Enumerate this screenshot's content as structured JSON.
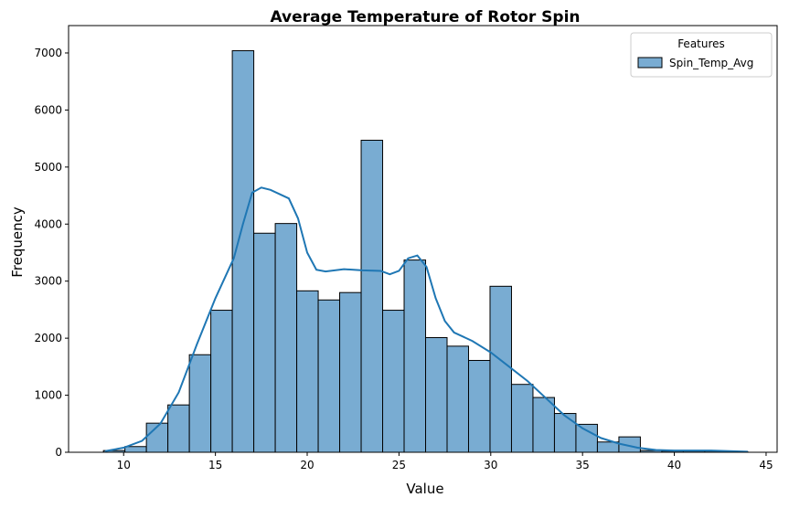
{
  "chart_data": {
    "type": "histogram",
    "title": "Average Temperature of Rotor Spin",
    "x_label": "Value",
    "y_label": "Frequency",
    "bins": [
      8.9,
      10.07,
      11.24,
      12.41,
      13.58,
      14.75,
      15.92,
      17.09,
      18.26,
      19.43,
      20.6,
      21.77,
      22.94,
      24.11,
      25.28,
      26.45,
      27.62,
      28.79,
      29.96,
      31.13,
      32.3,
      33.47,
      34.64,
      35.81,
      36.98,
      38.15,
      39.32,
      40.49,
      41.66,
      42.83,
      44.0
    ],
    "series": [
      {
        "name": "Spin_Temp_Avg",
        "color": "#79acd2",
        "edge_color": "#000000",
        "values": [
          30,
          100,
          510,
          830,
          1710,
          2490,
          7040,
          3840,
          4010,
          2830,
          2670,
          2800,
          5470,
          2490,
          3370,
          2010,
          1860,
          1610,
          2910,
          1190,
          960,
          680,
          490,
          180,
          270,
          30,
          20,
          20,
          20,
          10
        ]
      }
    ],
    "kde": {
      "color": "#1f77b4",
      "x": [
        9,
        10,
        11,
        12,
        13,
        14,
        15,
        16,
        16.5,
        17,
        17.5,
        18,
        19,
        19.5,
        20,
        20.5,
        21,
        22,
        23,
        24,
        24.5,
        25,
        25.5,
        26,
        26.5,
        27,
        27.5,
        28,
        29,
        30,
        31,
        32,
        33,
        34,
        35,
        36,
        37,
        38,
        39,
        40,
        41,
        42,
        43,
        44
      ],
      "values": [
        20,
        80,
        200,
        500,
        1050,
        1900,
        2700,
        3400,
        4000,
        4550,
        4640,
        4600,
        4450,
        4100,
        3500,
        3200,
        3170,
        3210,
        3190,
        3180,
        3120,
        3180,
        3400,
        3450,
        3250,
        2700,
        2300,
        2100,
        1950,
        1750,
        1500,
        1250,
        950,
        650,
        420,
        250,
        150,
        80,
        40,
        30,
        30,
        30,
        20,
        10
      ]
    },
    "legend_title": "Features",
    "legend": "upper right",
    "xlim": [
      7.0,
      45.6
    ],
    "ylim": [
      0,
      7480
    ],
    "xticks": [
      10,
      15,
      20,
      25,
      30,
      35,
      40,
      45
    ],
    "yticks": [
      0,
      1000,
      2000,
      3000,
      4000,
      5000,
      6000,
      7000
    ]
  }
}
